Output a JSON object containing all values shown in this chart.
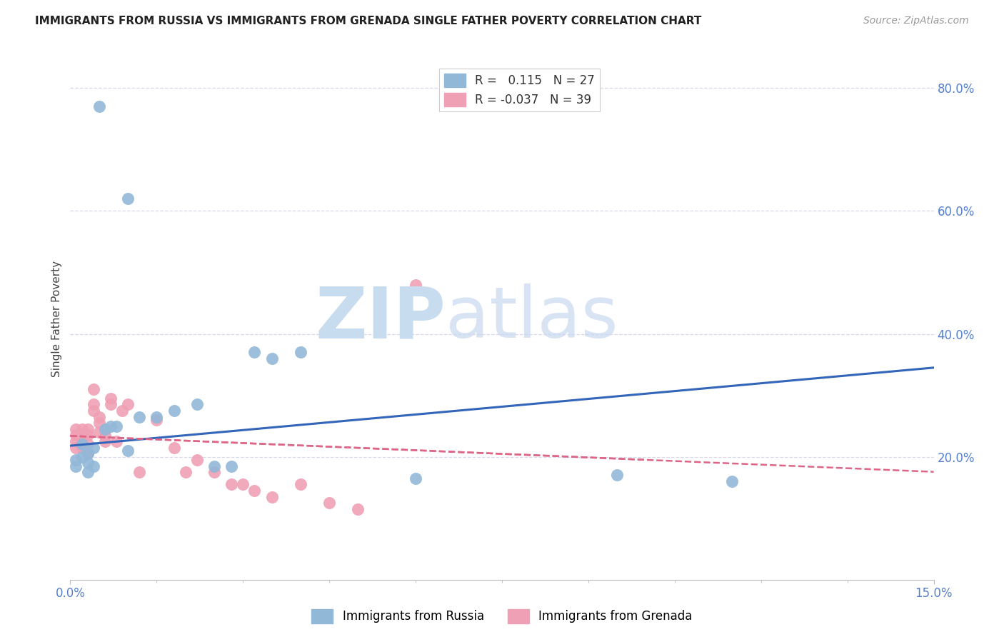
{
  "title": "IMMIGRANTS FROM RUSSIA VS IMMIGRANTS FROM GRENADA SINGLE FATHER POVERTY CORRELATION CHART",
  "source": "Source: ZipAtlas.com",
  "ylabel": "Single Father Poverty",
  "right_yticks": [
    "80.0%",
    "60.0%",
    "40.0%",
    "20.0%"
  ],
  "right_ytick_vals": [
    0.8,
    0.6,
    0.4,
    0.2
  ],
  "russia_color": "#92b8d8",
  "grenada_color": "#f0a0b5",
  "russia_line_color": "#3366bb",
  "grenada_line_color": "#dd6688",
  "russia_scatter_x": [
    0.001,
    0.001,
    0.002,
    0.002,
    0.003,
    0.003,
    0.003,
    0.004,
    0.004,
    0.005,
    0.006,
    0.007,
    0.008,
    0.01,
    0.01,
    0.012,
    0.015,
    0.018,
    0.022,
    0.025,
    0.028,
    0.032,
    0.035,
    0.04,
    0.06,
    0.095,
    0.115
  ],
  "russia_scatter_y": [
    0.195,
    0.185,
    0.22,
    0.2,
    0.205,
    0.19,
    0.175,
    0.215,
    0.185,
    0.77,
    0.245,
    0.25,
    0.25,
    0.62,
    0.21,
    0.265,
    0.265,
    0.275,
    0.285,
    0.185,
    0.185,
    0.37,
    0.36,
    0.37,
    0.165,
    0.17,
    0.16
  ],
  "grenada_scatter_x": [
    0.001,
    0.001,
    0.001,
    0.001,
    0.002,
    0.002,
    0.002,
    0.002,
    0.003,
    0.003,
    0.003,
    0.003,
    0.004,
    0.004,
    0.004,
    0.005,
    0.005,
    0.005,
    0.006,
    0.006,
    0.007,
    0.007,
    0.008,
    0.009,
    0.01,
    0.012,
    0.015,
    0.018,
    0.02,
    0.022,
    0.025,
    0.028,
    0.03,
    0.032,
    0.035,
    0.04,
    0.045,
    0.05,
    0.06
  ],
  "grenada_scatter_y": [
    0.245,
    0.235,
    0.225,
    0.215,
    0.245,
    0.235,
    0.225,
    0.215,
    0.245,
    0.235,
    0.22,
    0.205,
    0.31,
    0.285,
    0.275,
    0.265,
    0.255,
    0.24,
    0.235,
    0.225,
    0.295,
    0.285,
    0.225,
    0.275,
    0.285,
    0.175,
    0.26,
    0.215,
    0.175,
    0.195,
    0.175,
    0.155,
    0.155,
    0.145,
    0.135,
    0.155,
    0.125,
    0.115,
    0.48
  ],
  "russia_trendline_x": [
    0.0,
    0.15
  ],
  "russia_trendline_y": [
    0.218,
    0.345
  ],
  "grenada_trendline_x": [
    0.0,
    0.1
  ],
  "grenada_trendline_y": [
    0.234,
    0.195
  ],
  "xmin": 0.0,
  "xmax": 0.15,
  "ymin": 0.0,
  "ymax": 0.85,
  "background_color": "#ffffff",
  "grid_color": "#d8d8e8"
}
